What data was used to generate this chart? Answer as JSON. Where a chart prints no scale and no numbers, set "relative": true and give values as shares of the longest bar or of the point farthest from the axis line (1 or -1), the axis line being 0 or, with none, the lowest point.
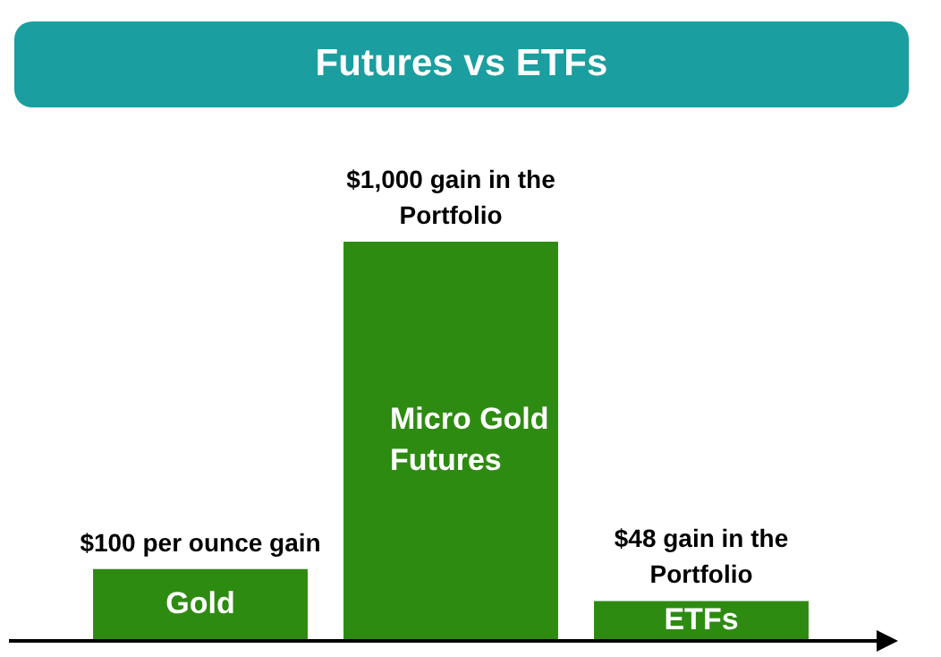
{
  "chart_data": {
    "type": "bar",
    "title": "Futures vs ETFs",
    "relative": true,
    "categories": [
      "Gold",
      "Micro Gold Futures",
      "ETFs"
    ],
    "values": [
      0.18,
      1,
      0.1
    ],
    "color": "#2e8b12",
    "annotations": [
      {
        "text": "$100 per ounce gain",
        "x": "Gold",
        "y": 0.18
      },
      {
        "text": "$1,000 gain in the Portfolio",
        "x": "Micro Gold Futures",
        "y": 1
      },
      {
        "text": "$48 gain in the Portfolio",
        "x": "ETFs",
        "y": 0.1
      }
    ],
    "grid": false,
    "legend": false
  }
}
